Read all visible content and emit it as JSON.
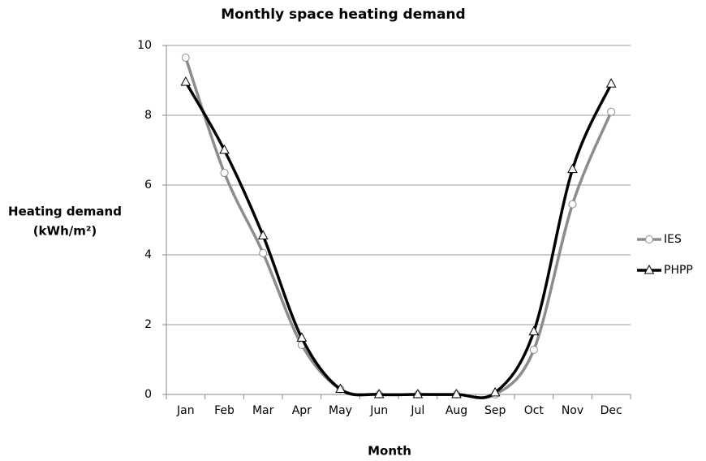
{
  "chart_data": {
    "type": "line",
    "title": "Monthly space heating demand",
    "ylabel": [
      "Heating demand",
      "(kWh/m²)"
    ],
    "xlabel": "Month",
    "categories": [
      "Jan",
      "Feb",
      "Mar",
      "Apr",
      "May",
      "Jun",
      "Jul",
      "Aug",
      "Sep",
      "Oct",
      "Nov",
      "Dec"
    ],
    "series": [
      {
        "name": "IES",
        "color": "#8c8c8c",
        "marker": "circle",
        "values": [
          9.65,
          6.35,
          4.05,
          1.42,
          0.15,
          0,
          0,
          0,
          0,
          1.28,
          5.45,
          8.1
        ]
      },
      {
        "name": "PHPP",
        "color": "#000000",
        "marker": "triangle",
        "values": [
          8.95,
          7.0,
          4.55,
          1.62,
          0.15,
          0,
          0,
          0,
          0.05,
          1.8,
          6.45,
          8.9
        ]
      }
    ],
    "ylim": [
      0,
      10
    ],
    "yticks": [
      0,
      2,
      4,
      6,
      8,
      10
    ],
    "grid": true,
    "smooth": true,
    "legend": "right"
  }
}
